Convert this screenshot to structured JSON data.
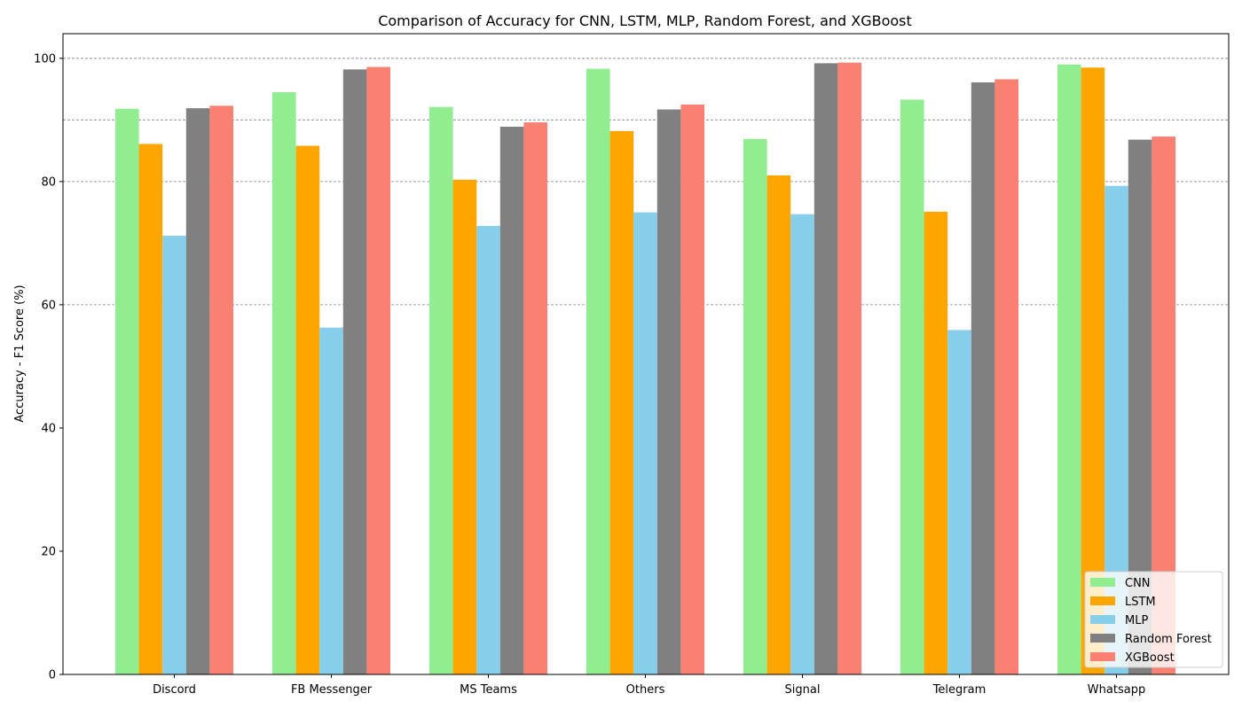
{
  "chart_data": {
    "type": "bar",
    "title": "Comparison of Accuracy for CNN, LSTM, MLP, Random Forest, and XGBoost",
    "xlabel": "",
    "ylabel": "Accuracy - F1 Score (%)",
    "ylim": [
      0,
      104
    ],
    "yticks": [
      "0",
      "20",
      "40",
      "60",
      "80",
      "100"
    ],
    "grid": "horizontal dashed at 60, 80, 90, 100",
    "legend_position": "lower-right",
    "categories": [
      "Discord",
      "FB Messenger",
      "MS Teams",
      "Others",
      "Signal",
      "Telegram",
      "Whatsapp"
    ],
    "series": [
      {
        "name": "CNN",
        "color": "#90ee90",
        "values": [
          91.8,
          94.5,
          92.1,
          98.3,
          86.9,
          93.3,
          99.0
        ]
      },
      {
        "name": "LSTM",
        "color": "#ffa500",
        "values": [
          86.1,
          85.8,
          80.3,
          88.2,
          81.0,
          75.1,
          98.5
        ]
      },
      {
        "name": "MLP",
        "color": "#87ceeb",
        "values": [
          71.2,
          56.3,
          72.8,
          75.0,
          74.7,
          55.9,
          79.3
        ]
      },
      {
        "name": "Random Forest",
        "color": "#808080",
        "values": [
          91.9,
          98.2,
          88.9,
          91.7,
          99.2,
          96.1,
          86.8
        ]
      },
      {
        "name": "XGBoost",
        "color": "#fa8072",
        "values": [
          92.3,
          98.6,
          89.6,
          92.5,
          99.3,
          96.6,
          87.3
        ]
      }
    ]
  }
}
